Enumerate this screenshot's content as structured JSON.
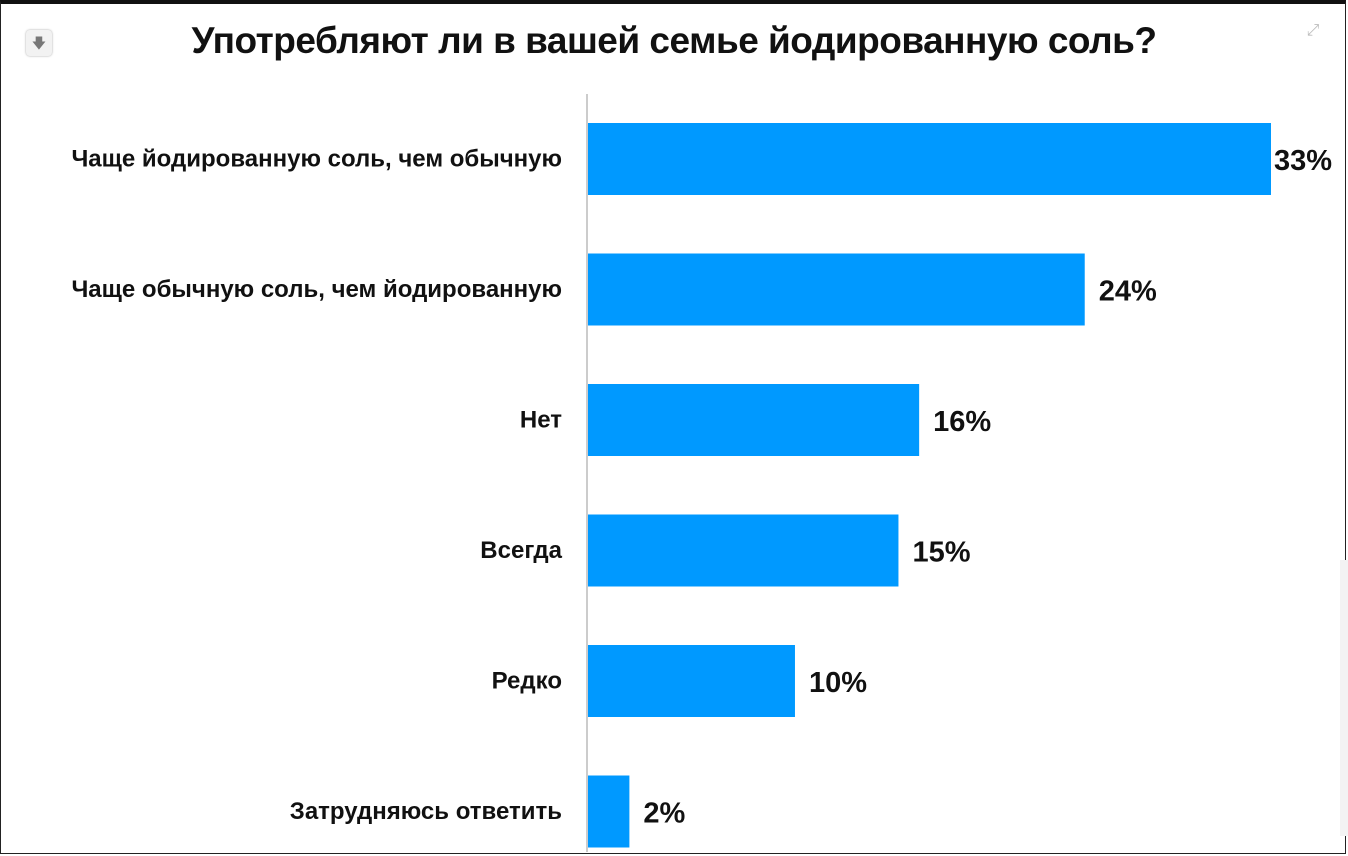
{
  "chart_data": {
    "type": "bar",
    "orientation": "horizontal",
    "title": "Употребляют ли в вашей семье йодированную соль?",
    "categories": [
      "Чаще йодированную соль, чем обычную",
      "Чаще обычную соль, чем йодированную",
      "Нет",
      "Всегда",
      "Редко",
      "Затрудняюсь ответить"
    ],
    "values": [
      33,
      24,
      16,
      15,
      10,
      2
    ],
    "value_labels": [
      "33%",
      "24%",
      "16%",
      "15%",
      "10%",
      "2%"
    ],
    "xlim": [
      0,
      33
    ],
    "grid": false,
    "legend": "none",
    "bar_color": "#0099ff",
    "axis_color": "#cccccc"
  },
  "toolbar": {
    "download_icon": "download-icon",
    "expand_icon": "expand-icon"
  }
}
